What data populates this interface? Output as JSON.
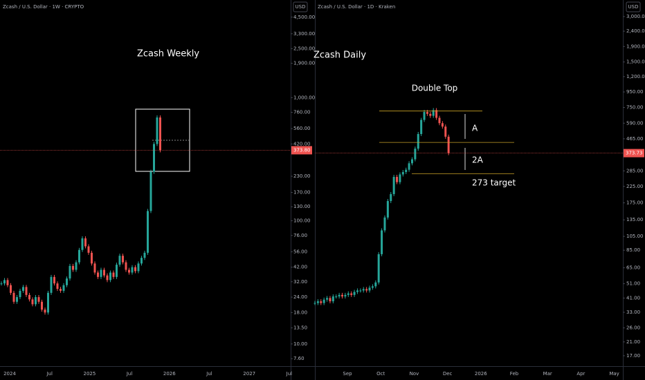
{
  "left": {
    "header": "Zcash / U.S. Dollar · 1W · CRYPTO",
    "currency": "USD",
    "title": "Zcash Weekly",
    "chart": {
      "type": "candlestick",
      "log": true,
      "ylim": [
        6.6,
        6200
      ],
      "close": [
        31,
        33,
        30,
        26,
        22,
        24,
        27,
        29,
        25,
        23,
        21,
        24,
        22,
        19,
        18,
        26,
        35,
        31,
        28,
        27,
        30,
        34,
        43,
        40,
        46,
        58,
        72,
        62,
        55,
        45,
        38,
        35,
        40,
        36,
        33,
        38,
        35,
        44,
        52,
        46,
        40,
        38,
        42,
        39,
        45,
        50,
        55,
        120,
        250,
        420,
        690,
        373.8
      ],
      "yticks": [
        {
          "value": 4500,
          "label": "4,500.00"
        },
        {
          "value": 3300,
          "label": "3,300.00"
        },
        {
          "value": 2500,
          "label": "2,500.00"
        },
        {
          "value": 1900,
          "label": "1,900.00"
        },
        {
          "value": 1000,
          "label": "1,000.00"
        },
        {
          "value": 760,
          "label": "760.00"
        },
        {
          "value": 560,
          "label": "560.00"
        },
        {
          "value": 420,
          "label": "420.00"
        },
        {
          "value": 230,
          "label": "230.00"
        },
        {
          "value": 170,
          "label": "170.00"
        },
        {
          "value": 130,
          "label": "130.00"
        },
        {
          "value": 100,
          "label": "100.00"
        },
        {
          "value": 76,
          "label": "76.00"
        },
        {
          "value": 56,
          "label": "56.00"
        },
        {
          "value": 42,
          "label": "42.00"
        },
        {
          "value": 32,
          "label": "32.00"
        },
        {
          "value": 24,
          "label": "24.00"
        },
        {
          "value": 18,
          "label": "18.00"
        },
        {
          "value": 13.5,
          "label": "13.50"
        },
        {
          "value": 10,
          "label": "10.00"
        },
        {
          "value": 7.6,
          "label": "7.60"
        }
      ],
      "xlabels": [
        "2024",
        "Jul",
        "2025",
        "Jul",
        "2026",
        "Jul",
        "2027",
        "Jul"
      ],
      "last_price": {
        "value": 373.8,
        "label": "373.80"
      }
    }
  },
  "right": {
    "header": "Zcash / U.S. Dollar · 1D · Kraken",
    "currency": "USD",
    "title": "Zcash Daily",
    "chart": {
      "type": "candlestick",
      "log": true,
      "ylim": [
        14.5,
        3860
      ],
      "close": [
        38,
        39,
        38,
        40,
        41,
        39,
        42,
        42,
        43,
        42,
        43,
        44,
        43,
        45,
        46,
        46,
        47,
        46,
        48,
        49,
        52,
        80,
        115,
        140,
        180,
        200,
        260,
        240,
        270,
        280,
        290,
        320,
        340,
        400,
        500,
        620,
        700,
        680,
        660,
        720,
        640,
        590,
        560,
        480,
        373.73
      ],
      "yticks": [
        {
          "value": 3000,
          "label": "3,000.00"
        },
        {
          "value": 2400,
          "label": "2,400.00"
        },
        {
          "value": 1900,
          "label": "1,900.00"
        },
        {
          "value": 1500,
          "label": "1,500.00"
        },
        {
          "value": 1200,
          "label": "1,200.00"
        },
        {
          "value": 950,
          "label": "950.00"
        },
        {
          "value": 750,
          "label": "750.00"
        },
        {
          "value": 590,
          "label": "590.00"
        },
        {
          "value": 465,
          "label": "465.00"
        },
        {
          "value": 285,
          "label": "285.00"
        },
        {
          "value": 225,
          "label": "225.00"
        },
        {
          "value": 175,
          "label": "175.00"
        },
        {
          "value": 135,
          "label": "135.00"
        },
        {
          "value": 105,
          "label": "105.00"
        },
        {
          "value": 85,
          "label": "85.00"
        },
        {
          "value": 65,
          "label": "65.00"
        },
        {
          "value": 51,
          "label": "51.00"
        },
        {
          "value": 41,
          "label": "41.00"
        },
        {
          "value": 33,
          "label": "33.00"
        },
        {
          "value": 26,
          "label": "26.00"
        },
        {
          "value": 21,
          "label": "21.00"
        },
        {
          "value": 17,
          "label": "17.00"
        }
      ],
      "xlabels": [
        "Sep",
        "Oct",
        "Nov",
        "Dec",
        "2026",
        "Feb",
        "Mar",
        "Apr",
        "May"
      ],
      "last_price": {
        "value": 373.73,
        "label": "373.73"
      },
      "levels": [
        710,
        440,
        273
      ],
      "annotations": [
        "Double Top",
        "A",
        "2A",
        "273 target"
      ]
    }
  }
}
